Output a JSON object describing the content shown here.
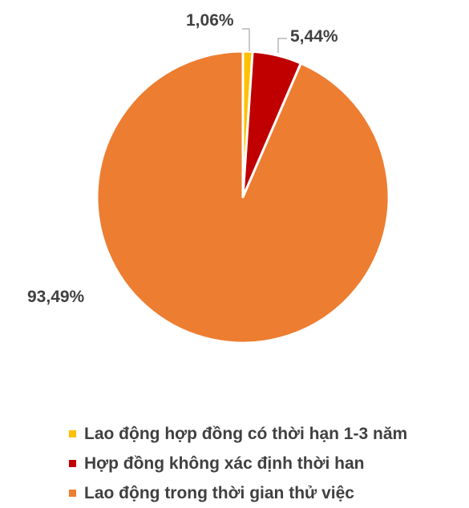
{
  "chart_data": {
    "type": "pie",
    "slices": [
      {
        "name": "Lao động hợp đồng có thời hạn 1-3 năm",
        "value": 1.06,
        "label": "1,06%",
        "color": "#FFC000"
      },
      {
        "name": "Hợp đồng không xác định thời han",
        "value": 5.44,
        "label": "5,44%",
        "color": "#C00000"
      },
      {
        "name": "Lao động trong thời gian thử việc",
        "value": 93.49,
        "label": "93,49%",
        "color": "#ED7D31"
      }
    ],
    "legend_position": "bottom",
    "start_angle": "12 o'clock",
    "direction": "clockwise"
  }
}
